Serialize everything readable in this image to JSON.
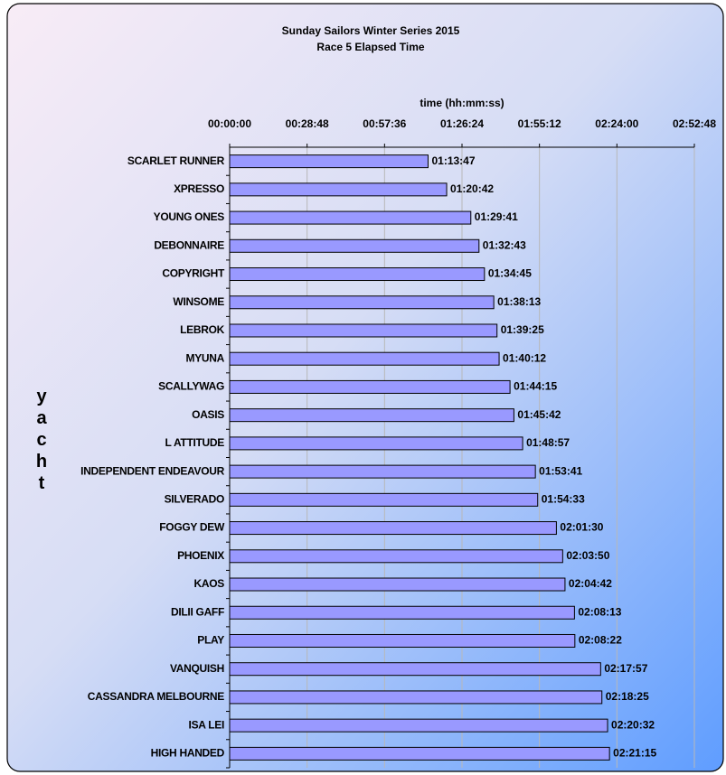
{
  "chart_data": {
    "type": "bar",
    "orientation": "horizontal",
    "title": "Sunday Sailors Winter Series 2015",
    "subtitle": "Race 5 Elapsed Time",
    "x_label": "time (hh:mm:ss)",
    "y_label": "yacht",
    "color": "#9999ff",
    "grid": true,
    "categories": [
      "SCARLET RUNNER",
      "XPRESSO",
      "YOUNG ONES",
      "DEBONNAIRE",
      "COPYRIGHT",
      "WINSOME",
      "LEBROK",
      "MYUNA",
      "SCALLYWAG",
      "OASIS",
      "L ATTITUDE",
      "INDEPENDENT ENDEAVOUR",
      "SILVERADO",
      "FOGGY DEW",
      "PHOENIX",
      "KAOS",
      "DILII GAFF",
      "PLAY",
      "VANQUISH",
      "CASSANDRA MELBOURNE",
      "ISA LEI",
      "HIGH HANDED"
    ],
    "values": [
      4427,
      4842,
      5381,
      5563,
      5685,
      5893,
      5965,
      6012,
      6255,
      6342,
      6537,
      6821,
      6873,
      7290,
      7430,
      7482,
      7693,
      7702,
      8277,
      8305,
      8432,
      8475
    ],
    "value_labels": [
      "01:13:47",
      "01:20:42",
      "01:29:41",
      "01:32:43",
      "01:34:45",
      "01:38:13",
      "01:39:25",
      "01:40:12",
      "01:44:15",
      "01:45:42",
      "01:48:57",
      "01:53:41",
      "01:54:33",
      "02:01:30",
      "02:03:50",
      "02:04:42",
      "02:08:13",
      "02:08:22",
      "02:17:57",
      "02:18:25",
      "02:20:32",
      "02:21:15"
    ],
    "xlim": [
      0,
      10368
    ],
    "xticks": [
      {
        "value": 0,
        "label": "00:00:00"
      },
      {
        "value": 1728,
        "label": "00:28:48"
      },
      {
        "value": 3456,
        "label": "00:57:36"
      },
      {
        "value": 5184,
        "label": "01:26:24"
      },
      {
        "value": 6912,
        "label": "01:55:12"
      },
      {
        "value": 8640,
        "label": "02:24:00"
      },
      {
        "value": 10368,
        "label": "02:52:48"
      }
    ]
  }
}
